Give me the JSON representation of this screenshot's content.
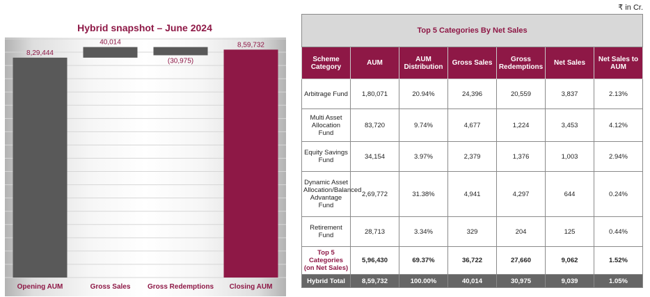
{
  "unit_note": "₹ in Cr.",
  "chart_data": {
    "type": "bar",
    "subtype": "waterfall",
    "title": "Hybrid snapshot – June 2024",
    "categories": [
      "Opening AUM",
      "Gross Sales",
      "Gross Redemptions",
      "Closing AUM"
    ],
    "values": [
      829444,
      40014,
      -30975,
      859732
    ],
    "value_labels": [
      "8,29,444",
      "40,014",
      "(30,975)",
      "8,59,732"
    ],
    "ylim": [
      0,
      900000
    ],
    "grid": true,
    "colors": {
      "total_open": "#595959",
      "delta": "#595959",
      "total_close": "#8e1846",
      "label": "#8e1846"
    }
  },
  "table": {
    "title": "Top 5 Categories By Net Sales",
    "headers": [
      "Scheme Category",
      "AUM",
      "AUM Distribution",
      "Gross Sales",
      "Gross Redemptions",
      "Net Sales",
      "Net Sales to AUM"
    ],
    "rows": [
      [
        "Arbitrage Fund",
        "1,80,071",
        "20.94%",
        "24,396",
        "20,559",
        "3,837",
        "2.13%"
      ],
      [
        "Multi Asset Allocation Fund",
        "83,720",
        "9.74%",
        "4,677",
        "1,224",
        "3,453",
        "4.12%"
      ],
      [
        "Equity Savings Fund",
        "34,154",
        "3.97%",
        "2,379",
        "1,376",
        "1,003",
        "2.94%"
      ],
      [
        "Dynamic Asset Allocation/Balanced Advantage Fund",
        "2,69,772",
        "31.38%",
        "4,941",
        "4,297",
        "644",
        "0.24%"
      ],
      [
        "Retirement Fund",
        "28,713",
        "3.34%",
        "329",
        "204",
        "125",
        "0.44%"
      ],
      [
        "Top 5 Categories (on Net Sales)",
        "5,96,430",
        "69.37%",
        "36,722",
        "27,660",
        "9,062",
        "1.52%"
      ],
      [
        "Hybrid Total",
        "8,59,732",
        "100.00%",
        "40,014",
        "30,975",
        "9,039",
        "1.05%"
      ]
    ]
  }
}
